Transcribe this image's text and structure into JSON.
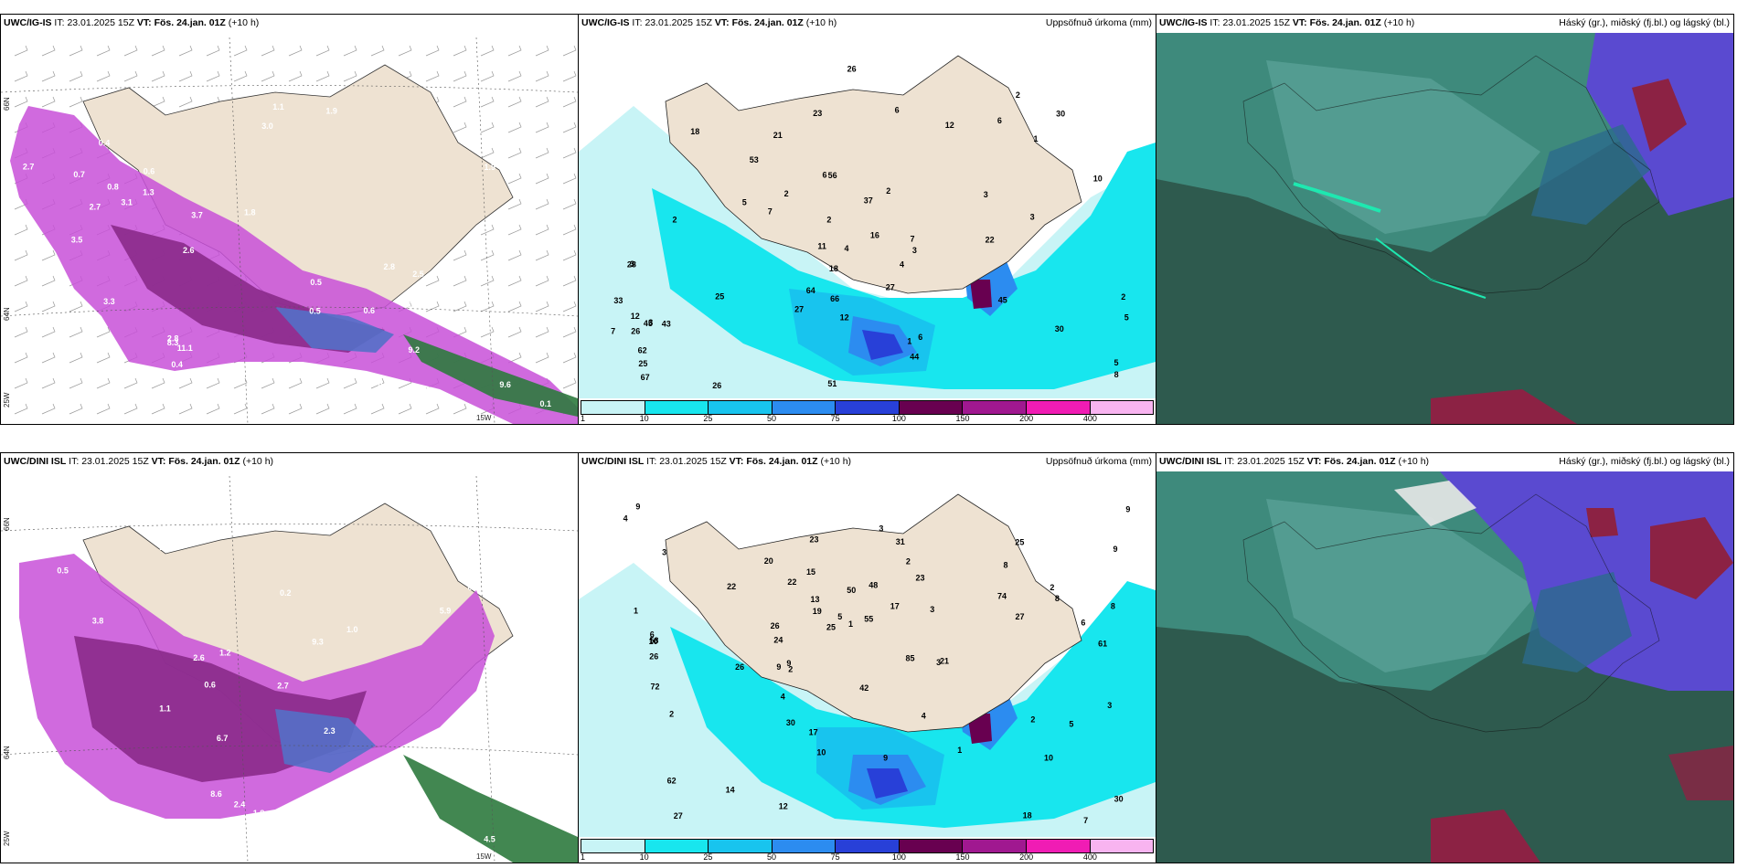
{
  "panels": {
    "top_left": {
      "model": "UWC/IG-IS",
      "it_label": "IT:",
      "it_value": "23.01.2025 15Z",
      "vt_label": "VT:",
      "vt_value": "Fös. 24.jan. 01Z",
      "lead": "(+10 h)",
      "right_title": "",
      "axis": {
        "lat1": "66N",
        "lat2": "64N",
        "lon1": "25W",
        "lon2": "15W"
      },
      "values": [
        "0.8",
        "0.1",
        "2.7",
        "0.5",
        "0.7",
        "3.0",
        "1.1",
        "0.5",
        "0.5",
        "0.4",
        "0.6",
        "1.3",
        "2.6",
        "2.5",
        "1.5",
        "1.9",
        "3.3",
        "2.8",
        "3.7",
        "1.3",
        "9.6",
        "10.1",
        "11.1",
        "3.2",
        "3.1",
        "2.8",
        "1.2",
        "8.3",
        "9.2",
        "5.2",
        "1.9",
        "2.3",
        "3.5",
        "1.8",
        "2.7",
        "0.6",
        "0.4"
      ]
    },
    "top_mid": {
      "model": "UWC/IG-IS",
      "it_label": "IT:",
      "it_value": "23.01.2025 15Z",
      "vt_label": "VT:",
      "vt_value": "Fös. 24.jan. 01Z",
      "lead": "(+10 h)",
      "right_title": "Uppsöfnuð úrkoma (mm)",
      "values": [
        "1",
        "3",
        "2",
        "3",
        "6",
        "11",
        "30",
        "25",
        "7",
        "7",
        "2",
        "16",
        "18",
        "12",
        "26",
        "27",
        "6",
        "4",
        "8",
        "2",
        "3",
        "12",
        "23",
        "10",
        "2",
        "3",
        "1",
        "2",
        "5",
        "7",
        "6",
        "5",
        "4",
        "12",
        "2",
        "3",
        "33",
        "26",
        "37",
        "26",
        "28",
        "43",
        "45",
        "62",
        "53",
        "51",
        "30",
        "21",
        "66",
        "45",
        "44",
        "56",
        "67",
        "64",
        "6",
        "18",
        "25",
        "22",
        "27",
        "5"
      ]
    },
    "top_right": {
      "model": "UWC/IG-IS",
      "it_label": "IT:",
      "it_value": "23.01.2025 15Z",
      "vt_label": "VT:",
      "vt_value": "Fös. 24.jan. 01Z",
      "lead": "(+10 h)",
      "right_title": "Háský (gr.), miðský (fj.bl.) og lágský (bl.)"
    },
    "bot_left": {
      "model": "UWC/DINI ISL",
      "it_label": "IT:",
      "it_value": "23.01.2025 15Z",
      "vt_label": "VT:",
      "vt_value": "Fös. 24.jan. 01Z",
      "lead": "(+10 h)",
      "right_title": "",
      "axis": {
        "lat1": "66N",
        "lat2": "64N",
        "lon1": "25W",
        "lon2": "15W"
      },
      "values": [
        "0.2",
        "0.5",
        "1.1",
        "2.6",
        "2.8",
        "2.9",
        "1.2",
        "2.4",
        "1.7",
        "1.6",
        "2.9",
        "3.0",
        "3.1",
        "2.0",
        "2.8",
        "3.8",
        "5.9",
        "8.6",
        "6.7",
        "4.5",
        "9.3",
        "2.7",
        "1.0",
        "0.4",
        "0.5",
        "0.6",
        "2.3",
        "2.3",
        "2.4",
        "0.5",
        "1.8"
      ]
    },
    "bot_mid": {
      "model": "UWC/DINI ISL",
      "it_label": "IT:",
      "it_value": "23.01.2025 15Z",
      "vt_label": "VT:",
      "vt_value": "Fös. 24.jan. 01Z",
      "lead": "(+10 h)",
      "right_title": "Uppsöfnuð úrkoma (mm)",
      "values": [
        "2",
        "4",
        "12",
        "30",
        "19",
        "10",
        "9",
        "10",
        "10",
        "9",
        "8",
        "6",
        "7",
        "13",
        "3",
        "8",
        "4",
        "9",
        "22",
        "14",
        "17",
        "15",
        "20",
        "26",
        "21",
        "23",
        "25",
        "24",
        "25",
        "18",
        "27",
        "27",
        "1",
        "4",
        "1",
        "2",
        "9",
        "9",
        "3",
        "6",
        "5",
        "8",
        "3",
        "5",
        "23",
        "26",
        "31",
        "22",
        "26",
        "17",
        "30",
        "42",
        "74",
        "85",
        "58",
        "55",
        "48",
        "50",
        "62",
        "72",
        "61",
        "9",
        "1",
        "2",
        "2",
        "2",
        "3",
        "3"
      ]
    },
    "bot_right": {
      "model": "UWC/DINI ISL",
      "it_label": "IT:",
      "it_value": "23.01.2025 15Z",
      "vt_label": "VT:",
      "vt_value": "Fös. 24.jan. 01Z",
      "lead": "(+10 h)",
      "right_title": "Háský (gr.), miðský (fj.bl.) og lágský (bl.)"
    }
  },
  "precip_scale": {
    "ticks": [
      "1",
      "10",
      "25",
      "50",
      "75",
      "100",
      "150",
      "200",
      "400"
    ],
    "colors": [
      "#c8f4f6",
      "#18e6ee",
      "#18c4ee",
      "#2c8cf0",
      "#2840d8",
      "#680050",
      "#a01890",
      "#f01cb4",
      "#f8b4f0"
    ]
  },
  "colors": {
    "land": "#eee2d2",
    "sea_bg": "#ffffff",
    "cloud_dark": "#2e5a4e",
    "cloud_mid": "#3e8a7c",
    "cloud_light": "#5ca49a",
    "violet": "#5a4ad0",
    "maroon": "#8c2244",
    "teal_edge": "#1ee8b0"
  }
}
